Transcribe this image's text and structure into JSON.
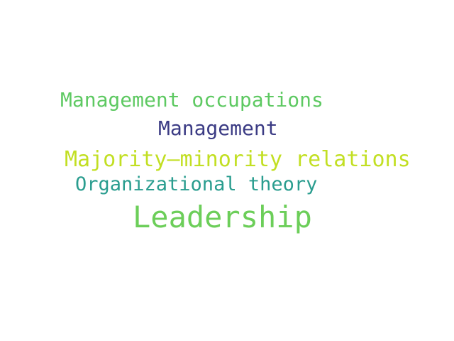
{
  "word_cloud": {
    "words": [
      {
        "text": "Management occupations",
        "color": "#5ec962"
      },
      {
        "text": "Management",
        "color": "#3b3b84"
      },
      {
        "text": "Majority–minority relations",
        "color": "#c2df23"
      },
      {
        "text": "Organizational theory",
        "color": "#2a9d8f"
      },
      {
        "text": "Leadership",
        "color": "#6cce59"
      }
    ]
  }
}
